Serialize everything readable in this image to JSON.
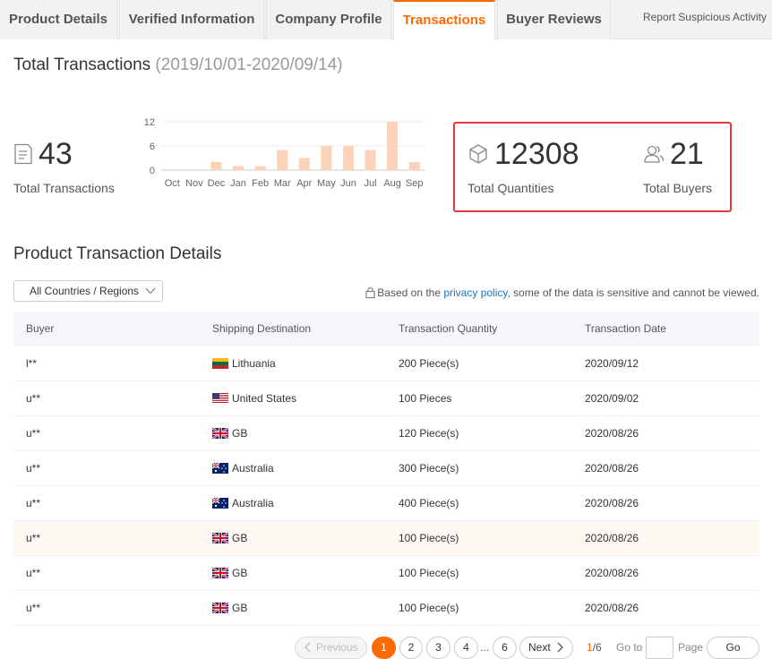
{
  "tabs": [
    {
      "label": "Product Details"
    },
    {
      "label": "Verified Information"
    },
    {
      "label": "Company Profile"
    },
    {
      "label": "Transactions"
    },
    {
      "label": "Buyer Reviews"
    }
  ],
  "report_link": "Report Suspicious Activity",
  "summary": {
    "title": "Total Transactions",
    "range": "(2019/10/01-2020/09/14)",
    "total_transactions": "43",
    "total_transactions_label": "Total Transactions",
    "total_quantities": "12308",
    "total_quantities_label": "Total Quantities",
    "total_buyers": "21",
    "total_buyers_label": "Total Buyers"
  },
  "chart_data": {
    "type": "bar",
    "categories": [
      "Oct",
      "Nov",
      "Dec",
      "Jan",
      "Feb",
      "Mar",
      "Apr",
      "May",
      "Jun",
      "Jul",
      "Aug",
      "Sep"
    ],
    "values": [
      0,
      0,
      2,
      1,
      1,
      5,
      3,
      6,
      6,
      5,
      12,
      2
    ],
    "yticks": [
      "12",
      "6",
      "0"
    ],
    "ylim": [
      0,
      12
    ],
    "bar_color": "#fcd3b8",
    "grid": true
  },
  "details": {
    "title": "Product Transaction Details",
    "country_select": "All Countries / Regions",
    "privacy_prefix": "Based on the ",
    "privacy_link": "privacy policy",
    "privacy_suffix": ", some of the data is sensitive and cannot be viewed."
  },
  "table": {
    "headers": [
      "Buyer",
      "Shipping Destination",
      "Transaction Quantity",
      "Transaction Date"
    ],
    "rows": [
      {
        "buyer": "l**",
        "flag": "lithuania",
        "destination": "Lithuania",
        "quantity": "200 Piece(s)",
        "date": "2020/09/12"
      },
      {
        "buyer": "u**",
        "flag": "us",
        "destination": "United States",
        "quantity": "100 Pieces",
        "date": "2020/09/02"
      },
      {
        "buyer": "u**",
        "flag": "gb",
        "destination": "GB",
        "quantity": "120 Piece(s)",
        "date": "2020/08/26"
      },
      {
        "buyer": "u**",
        "flag": "australia",
        "destination": "Australia",
        "quantity": "300 Piece(s)",
        "date": "2020/08/26"
      },
      {
        "buyer": "u**",
        "flag": "australia",
        "destination": "Australia",
        "quantity": "400 Piece(s)",
        "date": "2020/08/26"
      },
      {
        "buyer": "u**",
        "flag": "gb",
        "destination": "GB",
        "quantity": "100 Piece(s)",
        "date": "2020/08/26"
      },
      {
        "buyer": "u**",
        "flag": "gb",
        "destination": "GB",
        "quantity": "100 Piece(s)",
        "date": "2020/08/26"
      },
      {
        "buyer": "u**",
        "flag": "gb",
        "destination": "GB",
        "quantity": "100 Piece(s)",
        "date": "2020/08/26"
      }
    ]
  },
  "pagination": {
    "previous": "Previous",
    "pages": [
      "1",
      "2",
      "3",
      "4"
    ],
    "ellipsis": "...",
    "last": "6",
    "next": "Next",
    "current": "1",
    "total": "/6",
    "goto_label": "Go to",
    "page_label": "Page",
    "go": "Go"
  },
  "colors": {
    "accent": "#ff6a00",
    "highlight": "#e4393c",
    "link": "#1a74b8"
  }
}
